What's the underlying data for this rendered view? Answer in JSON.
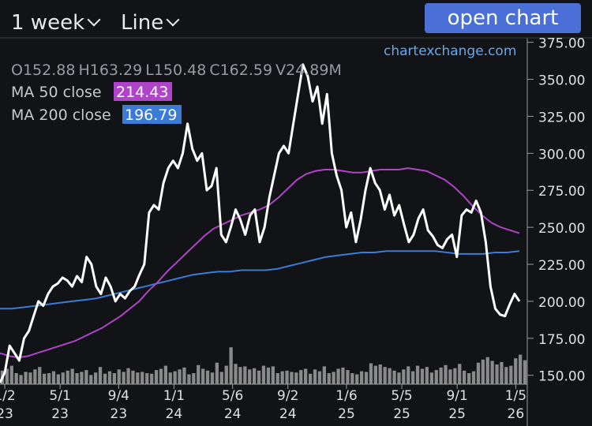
{
  "toolbar": {
    "interval_label": "1 week",
    "style_label": "Line",
    "open_chart_label": "open chart"
  },
  "watermark": "chartexchange.com",
  "ohlcv": {
    "o_label": "O",
    "o": "152.88",
    "h_label": "H",
    "h": "163.29",
    "l_label": "L",
    "l": "150.48",
    "c_label": "C",
    "c": "162.59",
    "v_label": "V",
    "v": "24.89M"
  },
  "indicators": [
    {
      "label": "MA 50 close",
      "value": "214.43",
      "color": "#b044c8"
    },
    {
      "label": "MA 200 close",
      "value": "196.79",
      "color": "#3b7bd6"
    }
  ],
  "colors": {
    "background": "#111316",
    "price_line": "#ffffff",
    "volume": "#8a8a8a",
    "ma50": "#b044c8",
    "ma200": "#3b7bd6",
    "axis_text": "#e0e0e0",
    "grid": "#2a2c30"
  },
  "chart_data": {
    "type": "line",
    "x_ticks": [
      {
        "label1": "1/2",
        "label2": "23",
        "t": 0
      },
      {
        "label1": "5/1",
        "label2": "23",
        "t": 17
      },
      {
        "label1": "9/4",
        "label2": "23",
        "t": 35
      },
      {
        "label1": "1/1",
        "label2": "24",
        "t": 52
      },
      {
        "label1": "5/6",
        "label2": "24",
        "t": 70
      },
      {
        "label1": "9/2",
        "label2": "24",
        "t": 87
      },
      {
        "label1": "1/6",
        "label2": "25",
        "t": 105
      },
      {
        "label1": "5/5",
        "label2": "25",
        "t": 122
      },
      {
        "label1": "9/1",
        "label2": "25",
        "t": 139
      },
      {
        "label1": "1/5",
        "label2": "26",
        "t": 157
      }
    ],
    "y_ticks": [
      150,
      175,
      200,
      225,
      250,
      275,
      300,
      325,
      350,
      375
    ],
    "y_tick_labels": [
      "150.00",
      "175.00",
      "200.00",
      "225.00",
      "250.00",
      "275.00",
      "300.00",
      "325.00",
      "350.00",
      "375.00"
    ],
    "ylim": [
      144,
      378
    ],
    "t_max": 162,
    "series": [
      {
        "name": "price",
        "values": [
          145,
          152,
          170,
          165,
          160,
          175,
          180,
          190,
          200,
          197,
          205,
          210,
          212,
          216,
          214,
          210,
          217,
          213,
          230,
          225,
          210,
          205,
          216,
          210,
          200,
          205,
          202,
          207,
          210,
          218,
          225,
          260,
          265,
          262,
          280,
          290,
          295,
          290,
          300,
          320,
          303,
          295,
          300,
          275,
          278,
          290,
          245,
          240,
          250,
          262,
          255,
          245,
          258,
          262,
          240,
          250,
          270,
          285,
          300,
          305,
          300,
          320,
          340,
          360,
          352,
          335,
          345,
          320,
          340,
          300,
          285,
          275,
          250,
          260,
          240,
          255,
          275,
          290,
          280,
          275,
          262,
          272,
          258,
          265,
          252,
          240,
          245,
          256,
          262,
          248,
          244,
          238,
          236,
          242,
          245,
          230,
          258,
          262,
          260,
          268,
          260,
          240,
          210,
          195,
          191,
          190,
          198,
          205,
          200
        ]
      },
      {
        "name": "MA 50 close",
        "values": [
          165,
          163,
          162,
          163,
          165,
          167,
          169,
          171,
          173,
          176,
          179,
          182,
          186,
          190,
          195,
          200,
          207,
          213,
          220,
          226,
          232,
          238,
          244,
          249,
          252,
          255,
          258,
          260,
          262,
          265,
          270,
          276,
          282,
          286,
          288,
          289,
          289,
          288,
          287,
          287,
          288,
          289,
          289,
          289,
          290,
          289,
          288,
          285,
          282,
          277,
          271,
          264,
          258,
          253,
          250,
          248,
          246
        ]
      },
      {
        "name": "MA 200 close",
        "values": [
          195,
          195,
          196,
          197,
          198,
          199,
          200,
          201,
          202,
          204,
          206,
          208,
          210,
          212,
          214,
          216,
          218,
          219,
          220,
          220,
          221,
          221,
          221,
          222,
          224,
          226,
          228,
          230,
          231,
          232,
          233,
          233,
          234,
          234,
          234,
          234,
          234,
          233,
          232,
          232,
          232,
          233,
          233,
          234
        ]
      }
    ],
    "volume": {
      "values": [
        22,
        25,
        30,
        18,
        15,
        20,
        19,
        24,
        28,
        17,
        18,
        21,
        16,
        19,
        22,
        25,
        18,
        20,
        23,
        15,
        19,
        28,
        17,
        21,
        18,
        24,
        20,
        26,
        22,
        19,
        20,
        18,
        17,
        23,
        25,
        30,
        19,
        21,
        24,
        27,
        16,
        18,
        31,
        25,
        22,
        19,
        35,
        20,
        30,
        60,
        33,
        28,
        29,
        24,
        26,
        22,
        30,
        27,
        29,
        18,
        21,
        22,
        20,
        19,
        23,
        25,
        17,
        24,
        21,
        29,
        18,
        20,
        25,
        27,
        23,
        18,
        16,
        21,
        20,
        34,
        30,
        32,
        28,
        26,
        22,
        19,
        24,
        29,
        21,
        30,
        25,
        28,
        19,
        23,
        27,
        31,
        24,
        26,
        33,
        22,
        18,
        21,
        35,
        40,
        44,
        38,
        32,
        36,
        28,
        30,
        42,
        48,
        39
      ],
      "ylim": [
        0,
        150
      ]
    }
  }
}
